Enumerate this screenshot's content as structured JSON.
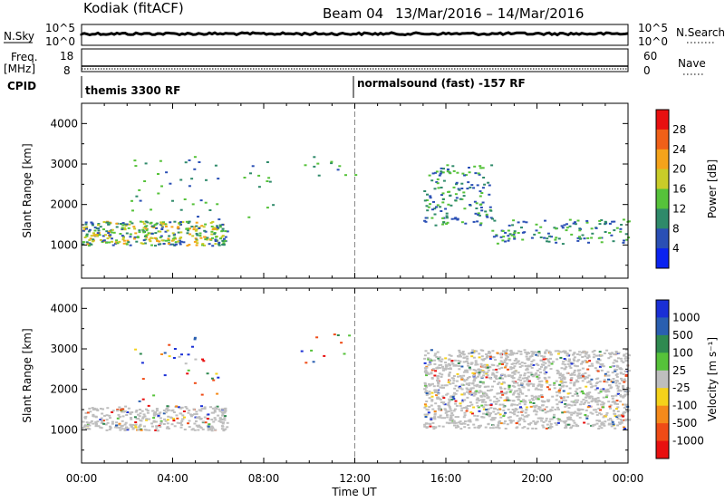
{
  "header": {
    "station": "Kodiak (fitACF)",
    "beam": "Beam 04",
    "dates": "13/Mar/2016 – 14/Mar/2016"
  },
  "strips": {
    "nsky_label": "N.Sky",
    "nsky_ticks": [
      "10^5",
      "10^0"
    ],
    "nsearch_label": "N.Search",
    "nsearch_ticks": [
      "10^5",
      "10^0"
    ],
    "freq_label_1": "Freq.",
    "freq_label_2": "[MHz]",
    "freq_ticks": [
      "18",
      "8"
    ],
    "nave_label": "Nave",
    "nave_ticks": [
      "60",
      "0"
    ],
    "cpid_label": "CPID",
    "cpid_1": "themis 3300 RF",
    "cpid_2": "normalsound (fast) -157 RF"
  },
  "chart_data": [
    {
      "type": "heatmap",
      "parameter": "power",
      "ylabel": "Slant Range [km]",
      "ylim": [
        180,
        4500
      ],
      "yticks": [
        1000,
        2000,
        3000,
        4000
      ],
      "colorbar_label": "Power [dB]",
      "colorbar_ticks": [
        "4",
        "8",
        "12",
        "16",
        "20",
        "24",
        "28"
      ],
      "colorbar_colors": [
        "#0a23f0",
        "#2a4fb5",
        "#2f8a6a",
        "#56c23a",
        "#c9cc29",
        "#f5a31a",
        "#f06018",
        "#e81010"
      ],
      "x_unit": "hours UT",
      "xlim": [
        0,
        24
      ],
      "scatter_regions": [
        {
          "x": [
            0,
            6.4
          ],
          "range": [
            1000,
            1600
          ],
          "level": "high"
        },
        {
          "x": [
            2,
            6
          ],
          "range": [
            1600,
            3300
          ],
          "level": "sparse"
        },
        {
          "x": [
            7,
            8.5
          ],
          "range": [
            1700,
            3100
          ],
          "level": "sparse"
        },
        {
          "x": [
            9.5,
            12
          ],
          "range": [
            2600,
            3400
          ],
          "level": "sparse"
        },
        {
          "x": [
            15,
            18
          ],
          "range": [
            1500,
            3000
          ],
          "level": "mid"
        },
        {
          "x": [
            18,
            24
          ],
          "range": [
            1050,
            1650
          ],
          "level": "mid"
        }
      ]
    },
    {
      "type": "heatmap",
      "parameter": "velocity",
      "ylabel": "Slant Range [km]",
      "ylim": [
        180,
        4500
      ],
      "yticks": [
        1000,
        2000,
        3000,
        4000
      ],
      "colorbar_label": "Velocity [m s⁻¹]",
      "colorbar_ticks": [
        "1000",
        "500",
        "100",
        "25",
        "-25",
        "-100",
        "-500",
        "-1000"
      ],
      "colorbar_colors": [
        "#1a2fd6",
        "#2a5fb0",
        "#2f8a50",
        "#56c23a",
        "#bebebe",
        "#f5d21a",
        "#f58a1a",
        "#ef4b16",
        "#e81010"
      ],
      "x_unit": "hours UT",
      "xlim": [
        0,
        24
      ],
      "xlabel": "Time UT",
      "xticks": [
        "00:00",
        "04:00",
        "08:00",
        "12:00",
        "16:00",
        "20:00",
        "00:00"
      ],
      "scatter_regions": [
        {
          "x": [
            0,
            6.4
          ],
          "range": [
            1000,
            1600
          ],
          "level": "ground"
        },
        {
          "x": [
            2,
            6
          ],
          "range": [
            1600,
            3300
          ],
          "level": "sparse"
        },
        {
          "x": [
            9.5,
            12
          ],
          "range": [
            2600,
            3400
          ],
          "level": "sparse"
        },
        {
          "x": [
            15,
            24
          ],
          "range": [
            1050,
            3000
          ],
          "level": "ground"
        }
      ]
    }
  ]
}
